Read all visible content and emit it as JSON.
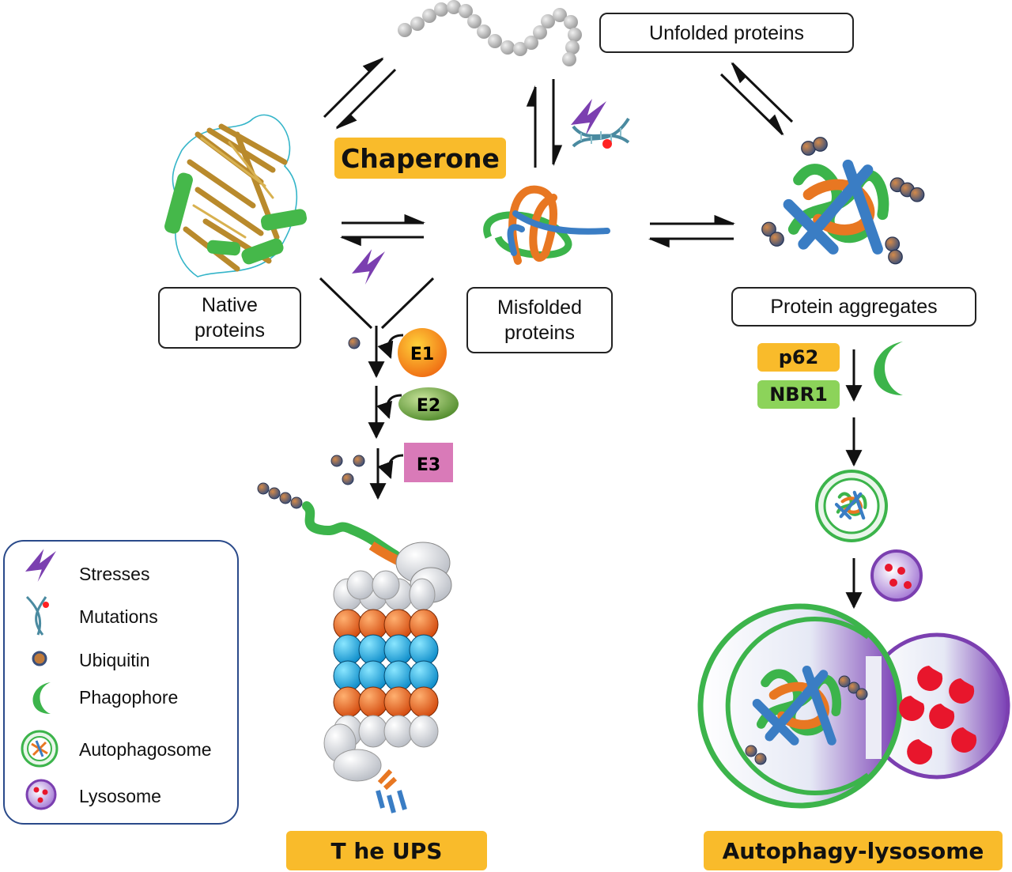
{
  "labels": {
    "unfolded": "Unfolded proteins",
    "native": "Native\nproteins",
    "misfolded": "Misfolded\nproteins",
    "aggregates": "Protein aggregates",
    "chaperone": "Chaperone",
    "e1": "E1",
    "e2": "E2",
    "e3": "E3",
    "p62": "p62",
    "nbr1": "NBR1",
    "ups": "T he UPS",
    "autophagy": "Autophagy-lysosome"
  },
  "legend": [
    {
      "icon": "lightning-icon",
      "label": "Stresses"
    },
    {
      "icon": "dna-mutation-icon",
      "label": "Mutations"
    },
    {
      "icon": "ubiquitin-icon",
      "label": "Ubiquitin"
    },
    {
      "icon": "phagophore-icon",
      "label": "Phagophore"
    },
    {
      "icon": "autophagosome-icon",
      "label": "Autophagosome"
    },
    {
      "icon": "lysosome-icon",
      "label": "Lysosome"
    }
  ],
  "colors": {
    "orange_tag": "#f9bb2b",
    "green_tag": "#8cd35a",
    "stress": "#7b3fb0",
    "ubiquitin": "#4a6fa5",
    "lysosome": "#7b3fb0",
    "autophagosome": "#3cb44b"
  }
}
